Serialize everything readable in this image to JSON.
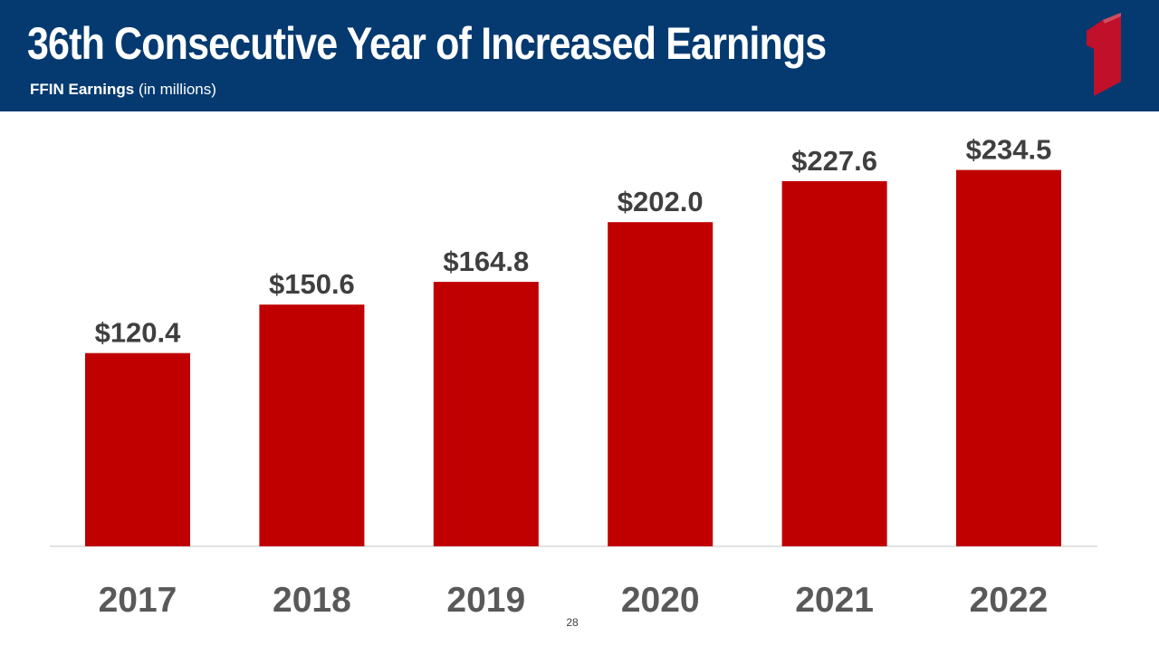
{
  "header": {
    "title": "36th Consecutive Year of Increased Earnings",
    "subtitle_bold": "FFIN Earnings",
    "subtitle_rest": " (in millions)",
    "logo_icon": "first-financial-number-one-icon"
  },
  "colors": {
    "header_bg": "#053a70",
    "bar": "#c00000",
    "logo": "#c0102a",
    "label_text": "#3f3f3f",
    "tick_text": "#595959"
  },
  "chart_data": {
    "type": "bar",
    "categories": [
      "2017",
      "2018",
      "2019",
      "2020",
      "2021",
      "2022"
    ],
    "values": [
      120.4,
      150.6,
      164.8,
      202.0,
      227.6,
      234.5
    ],
    "data_labels": [
      "$120.4",
      "$150.6",
      "$164.8",
      "$202.0",
      "$227.6",
      "$234.5"
    ],
    "title": "",
    "xlabel": "",
    "ylabel": "",
    "ylim": [
      0,
      245
    ],
    "grid": false,
    "legend": "none"
  },
  "footer": {
    "page_number": "28"
  }
}
